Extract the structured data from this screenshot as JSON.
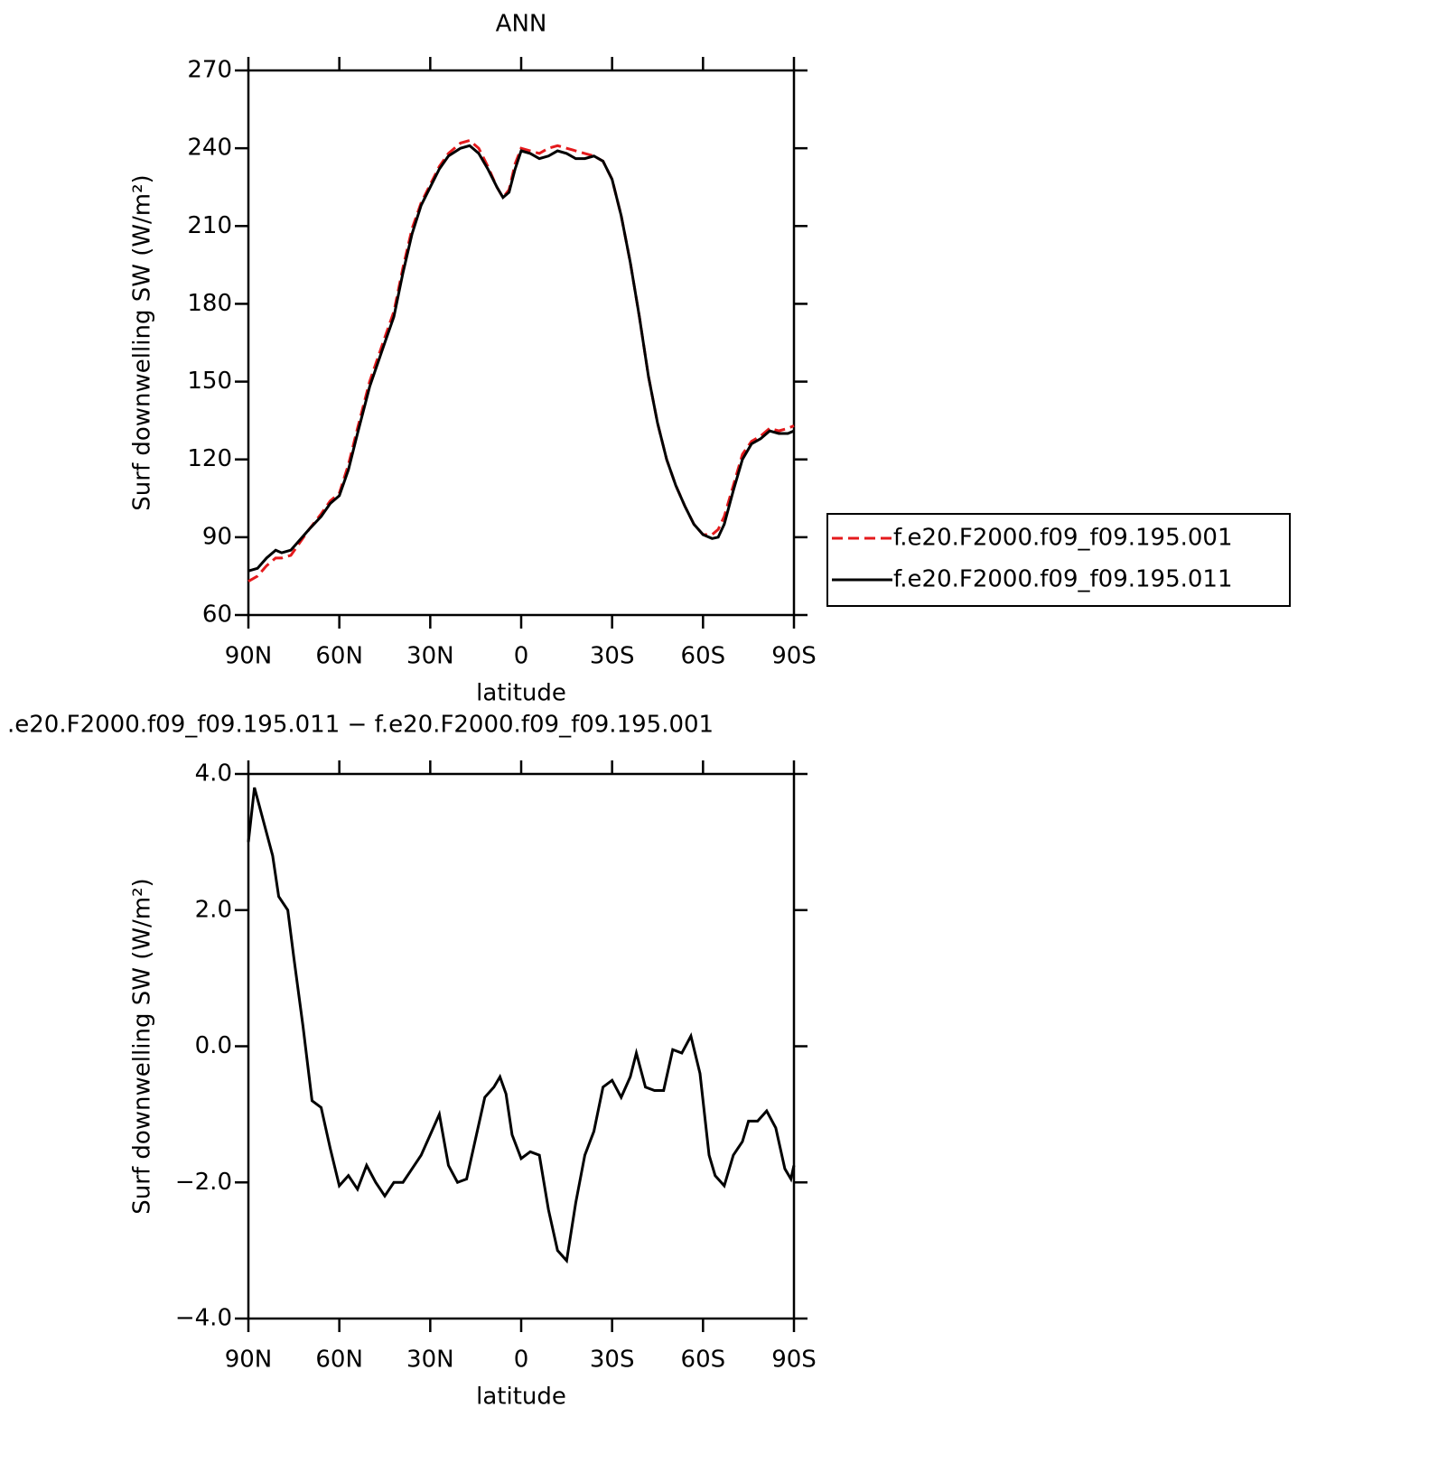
{
  "chart_data": [
    {
      "type": "line",
      "title": "ANN",
      "xlabel": "latitude",
      "ylabel": "Surf downwelling SW (W/m²)",
      "xlim": [
        90,
        -90
      ],
      "xticks": [
        {
          "value": 90,
          "label": "90N"
        },
        {
          "value": 60,
          "label": "60N"
        },
        {
          "value": 30,
          "label": "30N"
        },
        0,
        {
          "value": -30,
          "label": "30S"
        },
        {
          "value": -60,
          "label": "60S"
        },
        {
          "value": -90,
          "label": "90S"
        }
      ],
      "ylim": [
        60,
        270
      ],
      "yticks": [
        60,
        90,
        120,
        150,
        180,
        210,
        240,
        270
      ],
      "legend": "right",
      "x": [
        90,
        87,
        84,
        81,
        79,
        76,
        73,
        70,
        66,
        63,
        60,
        57,
        54,
        50,
        45,
        42,
        39,
        36,
        33,
        30,
        27,
        24,
        20,
        17,
        14,
        11,
        8,
        6,
        4,
        2,
        0,
        -3,
        -6,
        -9,
        -12,
        -15,
        -18,
        -21,
        -24,
        -27,
        -30,
        -33,
        -36,
        -39,
        -42,
        -45,
        -48,
        -51,
        -54,
        -57,
        -60,
        -63,
        -65,
        -67,
        -70,
        -73,
        -76,
        -79,
        -82,
        -85,
        -88,
        -90
      ],
      "series": [
        {
          "name": "f.e20.F2000.f09_f09.195.001",
          "color": "#e41a1c",
          "dash": true,
          "values": [
            73,
            75,
            79,
            82,
            82,
            83,
            88,
            93,
            99,
            104,
            107,
            118,
            132,
            150,
            167,
            177,
            194,
            209,
            219,
            226,
            233,
            238,
            242,
            243,
            240,
            233,
            225,
            221,
            224,
            234,
            240,
            239,
            238,
            240,
            241,
            240,
            239,
            238,
            237,
            235,
            228,
            214,
            196,
            175,
            152,
            134,
            120,
            110,
            102,
            95,
            91,
            91,
            93,
            98,
            110,
            122,
            127,
            129,
            132,
            131,
            132,
            133
          ]
        },
        {
          "name": "f.e20.F2000.f09_f09.195.011",
          "color": "#000000",
          "dash": false,
          "values": [
            77,
            78,
            82,
            85,
            84,
            85,
            89,
            93,
            98,
            103,
            106,
            116,
            130,
            148,
            165,
            175,
            192,
            207,
            218,
            225,
            232,
            237,
            240,
            241,
            238,
            232,
            225,
            221,
            223,
            232,
            239,
            238,
            236,
            237,
            239,
            238,
            236,
            236,
            237,
            235,
            228,
            214,
            196,
            175,
            152,
            134,
            120,
            110,
            102,
            95,
            91,
            89.5,
            90,
            95,
            108,
            120,
            126,
            128,
            131,
            130,
            130,
            131
          ]
        }
      ]
    },
    {
      "type": "line",
      "title": ".e20.F2000.f09_f09.195.011 − f.e20.F2000.f09_f09.195.001",
      "xlabel": "latitude",
      "ylabel": "Surf downwelling SW (W/m²)",
      "xlim": [
        90,
        -90
      ],
      "xticks": [
        {
          "value": 90,
          "label": "90N"
        },
        {
          "value": 60,
          "label": "60N"
        },
        {
          "value": 30,
          "label": "30N"
        },
        0,
        {
          "value": -30,
          "label": "30S"
        },
        {
          "value": -60,
          "label": "60S"
        },
        {
          "value": -90,
          "label": "90S"
        }
      ],
      "ylim": [
        -4,
        4
      ],
      "yticks": [
        {
          "value": -4,
          "label": "−4.0"
        },
        {
          "value": -2,
          "label": "−2.0"
        },
        {
          "value": 0,
          "label": "0.0"
        },
        {
          "value": 2,
          "label": "2.0"
        },
        {
          "value": 4,
          "label": "4.0"
        }
      ],
      "x": [
        90,
        88,
        85,
        82,
        80,
        77,
        75,
        72,
        69,
        66,
        63,
        60,
        57,
        54,
        51,
        48,
        45,
        42,
        39,
        36,
        33,
        30,
        27,
        24,
        21,
        18,
        15,
        12,
        9,
        7,
        5,
        3,
        0,
        -3,
        -6,
        -9,
        -12,
        -15,
        -18,
        -21,
        -24,
        -27,
        -30,
        -33,
        -36,
        -38,
        -41,
        -44,
        -47,
        -50,
        -53,
        -56,
        -59,
        -62,
        -64,
        -67,
        -70,
        -73,
        -75,
        -78,
        -81,
        -84,
        -87,
        -89,
        -90
      ],
      "series": [
        {
          "color": "#000000",
          "dash": false,
          "values": [
            3.0,
            3.8,
            3.3,
            2.8,
            2.2,
            2.0,
            1.3,
            0.3,
            -0.8,
            -0.9,
            -1.5,
            -2.05,
            -1.9,
            -2.1,
            -1.75,
            -2.0,
            -2.2,
            -2.0,
            -2.0,
            -1.8,
            -1.6,
            -1.3,
            -1.0,
            -1.75,
            -2.0,
            -1.95,
            -1.35,
            -0.75,
            -0.6,
            -0.45,
            -0.7,
            -1.3,
            -1.65,
            -1.55,
            -1.6,
            -2.4,
            -3.0,
            -3.15,
            -2.3,
            -1.6,
            -1.25,
            -0.6,
            -0.5,
            -0.75,
            -0.45,
            -0.1,
            -0.6,
            -0.65,
            -0.65,
            -0.05,
            -0.1,
            0.15,
            -0.4,
            -1.6,
            -1.9,
            -2.05,
            -1.6,
            -1.4,
            -1.1,
            -1.1,
            -0.95,
            -1.2,
            -1.8,
            -1.95,
            -1.75
          ]
        }
      ]
    }
  ]
}
